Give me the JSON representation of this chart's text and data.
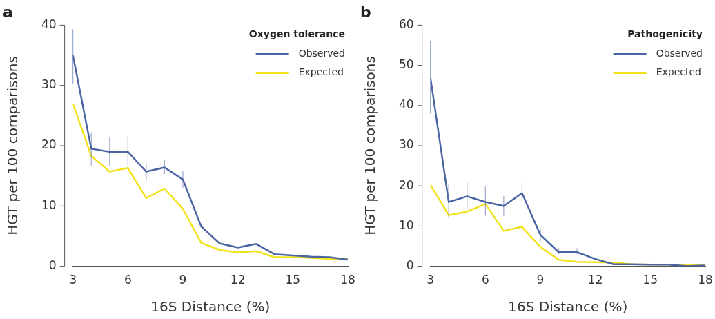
{
  "chart_data": [
    {
      "type": "line",
      "title": "a",
      "legend_title": "Oxygen tolerance",
      "xlabel": "16S Distance (%)",
      "ylabel": "HGT per 100 comparisons",
      "x": [
        3,
        4,
        5,
        6,
        7,
        8,
        9,
        10,
        11,
        12,
        13,
        14,
        15,
        16,
        17,
        18
      ],
      "series": [
        {
          "name": "Observed",
          "color": "#4a64a4",
          "values": [
            35,
            19.5,
            19,
            19,
            15.7,
            16.4,
            14.4,
            6.6,
            3.8,
            3.1,
            3.7,
            2,
            1.8,
            1.6,
            1.5,
            1.1
          ],
          "errors": [
            [
              30.2,
              39.3
            ],
            [
              16.7,
              22.2
            ],
            [
              16.7,
              21.4
            ],
            [
              16.7,
              21.5
            ],
            [
              14.1,
              17.2
            ],
            [
              15.3,
              17.7
            ],
            [
              13,
              15.8
            ],
            null,
            null,
            null,
            null,
            null,
            null,
            null,
            null,
            null
          ]
        },
        {
          "name": "Expected",
          "color": "#f2e21c",
          "values": [
            27,
            18.3,
            15.7,
            16.3,
            11.3,
            12.9,
            9.5,
            3.9,
            2.7,
            2.3,
            2.5,
            1.5,
            1.5,
            1.4,
            1.2,
            1.2
          ]
        }
      ],
      "xlim": [
        3,
        18
      ],
      "xticks": [
        3,
        6,
        9,
        12,
        15,
        18
      ],
      "ylim": [
        0,
        40
      ],
      "yticks": [
        0,
        10,
        20,
        30,
        40
      ],
      "grid": false,
      "legend": "top right",
      "marker": "none",
      "line_style": "solid"
    },
    {
      "type": "line",
      "title": "b",
      "legend_title": "Pathogenicity",
      "xlabel": "16S Distance (%)",
      "ylabel": "HGT per 100 comparisons",
      "x": [
        3,
        4,
        5,
        6,
        7,
        8,
        9,
        10,
        11,
        12,
        13,
        14,
        15,
        16,
        17,
        18
      ],
      "series": [
        {
          "name": "Observed",
          "color": "#4a64a4",
          "values": [
            47,
            16,
            17.4,
            16,
            15,
            18.2,
            7.8,
            3.5,
            3.5,
            1.8,
            0.5,
            0.5,
            0.4,
            0.4,
            0,
            0.2
          ],
          "errors": [
            [
              38,
              56
            ],
            [
              12,
              20.5
            ],
            [
              14,
              21
            ],
            [
              12.5,
              20
            ],
            [
              12.5,
              17.5
            ],
            [
              16,
              20.7
            ],
            [
              6,
              9.5
            ],
            [
              3,
              4.5
            ],
            [
              3,
              4.5
            ],
            null,
            null,
            null,
            null,
            null,
            null,
            null
          ]
        },
        {
          "name": "Expected",
          "color": "#f2e21c",
          "values": [
            20.3,
            12.7,
            13.6,
            15.5,
            8.8,
            9.8,
            4.8,
            1.6,
            1.1,
            1,
            0.9,
            0.5,
            0.4,
            0.4,
            0.3,
            0.3
          ]
        }
      ],
      "xlim": [
        3,
        18
      ],
      "xticks": [
        3,
        6,
        9,
        12,
        15,
        18
      ],
      "ylim": [
        0,
        60
      ],
      "yticks": [
        0,
        10,
        20,
        30,
        40,
        50,
        60
      ],
      "grid": false,
      "legend": "top right",
      "marker": "none",
      "line_style": "solid"
    }
  ]
}
